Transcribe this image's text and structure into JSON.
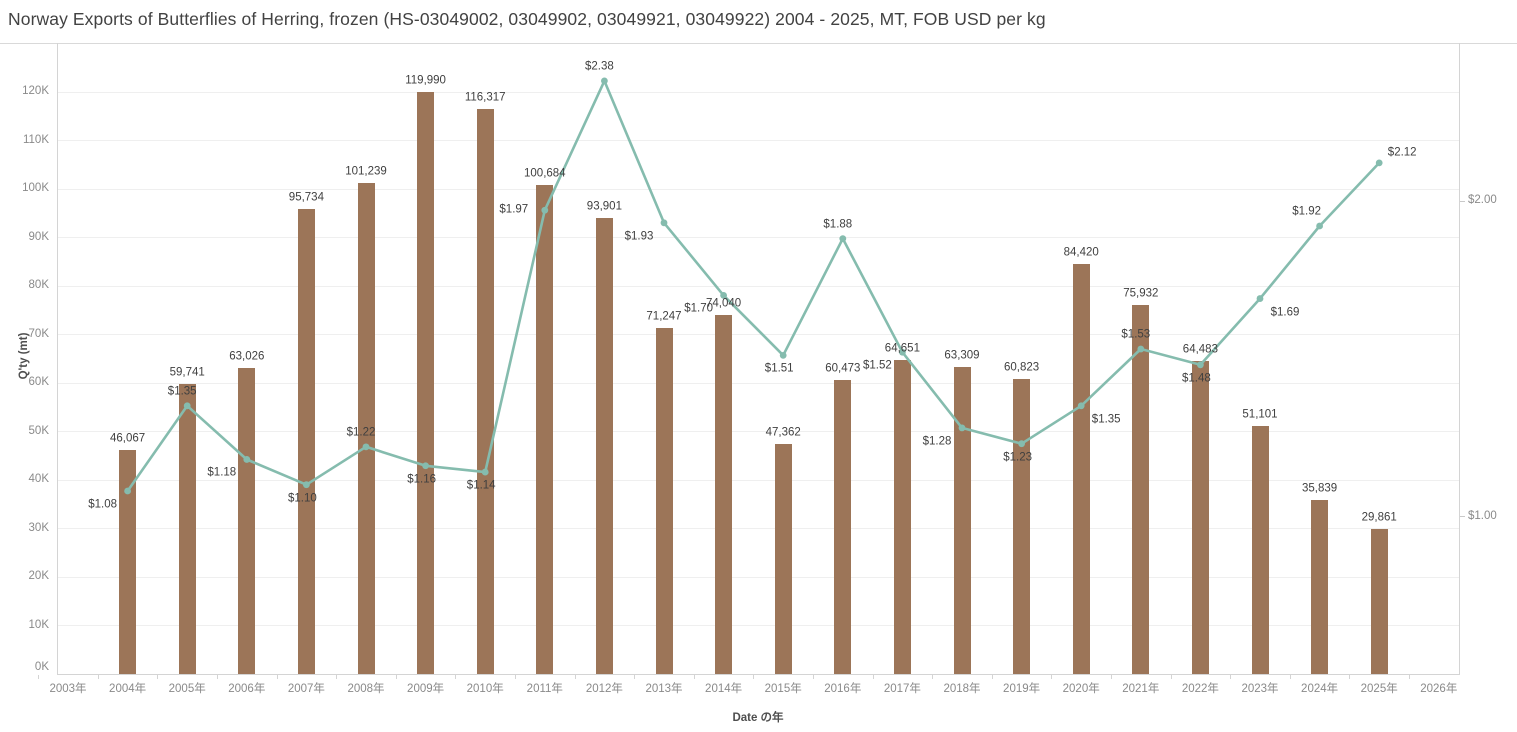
{
  "title": "Norway Exports of Butterflies of Herring, frozen (HS-03049002, 03049902, 03049921, 03049922) 2004 - 2025, MT, FOB USD per kg",
  "axes": {
    "left": {
      "title": "Q'ty (mt)",
      "ticks": [
        "0K",
        "10K",
        "20K",
        "30K",
        "40K",
        "50K",
        "60K",
        "70K",
        "80K",
        "90K",
        "100K",
        "110K",
        "120K"
      ]
    },
    "right": {
      "ticks": [
        {
          "label": "$1.00",
          "value": 1.0
        },
        {
          "label": "$2.00",
          "value": 2.0
        }
      ]
    },
    "x": {
      "title": "Date の年",
      "ticks": [
        "2003年",
        "2004年",
        "2005年",
        "2006年",
        "2007年",
        "2008年",
        "2009年",
        "2010年",
        "2011年",
        "2012年",
        "2013年",
        "2014年",
        "2015年",
        "2016年",
        "2017年",
        "2018年",
        "2019年",
        "2020年",
        "2021年",
        "2022年",
        "2023年",
        "2024年",
        "2025年",
        "2026年"
      ]
    }
  },
  "chart_data": {
    "type": "combo",
    "categories": [
      "2004年",
      "2005年",
      "2006年",
      "2007年",
      "2008年",
      "2009年",
      "2010年",
      "2011年",
      "2012年",
      "2013年",
      "2014年",
      "2015年",
      "2016年",
      "2017年",
      "2018年",
      "2019年",
      "2020年",
      "2021年",
      "2022年",
      "2023年",
      "2024年",
      "2025年"
    ],
    "series": [
      {
        "name": "Q'ty (mt)",
        "type": "bar",
        "color": "#9c7558",
        "values": [
          46067,
          59741,
          63026,
          95734,
          101239,
          119990,
          116317,
          100684,
          93901,
          71247,
          74040,
          47362,
          60473,
          64651,
          63309,
          60823,
          84420,
          75932,
          64483,
          51101,
          35839,
          29861
        ]
      },
      {
        "name": "FOB USD per kg",
        "type": "line",
        "color": "#85bcae",
        "values": [
          1.08,
          1.35,
          1.18,
          1.1,
          1.22,
          1.16,
          1.14,
          1.97,
          2.38,
          1.93,
          1.7,
          1.51,
          1.88,
          1.52,
          1.28,
          1.23,
          1.35,
          1.53,
          1.48,
          1.69,
          1.92,
          2.12
        ],
        "label_placement": [
          "below-left",
          "above",
          "below-left",
          "below",
          "above",
          "below",
          "below",
          "left",
          "above",
          "below-left",
          "below-left",
          "below",
          "above",
          "below-left",
          "below-left",
          "below",
          "below-right",
          "above",
          "below",
          "below-right",
          "above-left",
          "above-right"
        ]
      }
    ],
    "title": "Norway Exports of Butterflies of Herring, frozen (HS-03049002, 03049902, 03049921, 03049922) 2004 - 2025, MT, FOB USD per kg",
    "xlabel": "Date の年",
    "ylabel": "Q'ty (mt)",
    "ylabel_right": "FOB USD per kg",
    "ylim": [
      0,
      130000
    ],
    "y2lim": [
      0.5,
      2.5
    ],
    "grid": "horizontal",
    "legend": "none"
  }
}
